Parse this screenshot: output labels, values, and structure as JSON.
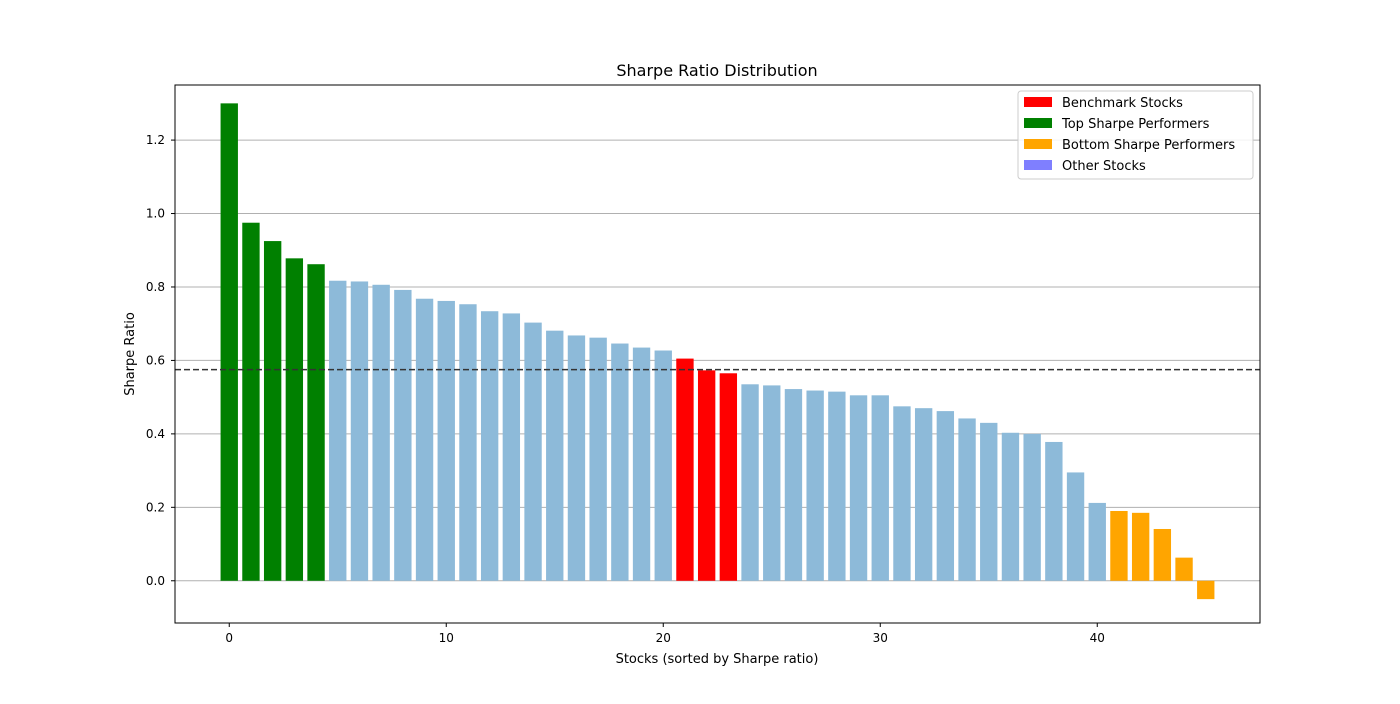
{
  "chart_data": {
    "type": "bar",
    "title": "Sharpe Ratio Distribution",
    "xlabel": "Stocks (sorted by Sharpe ratio)",
    "ylabel": "Sharpe Ratio",
    "xlim": [
      -2.5,
      47.5
    ],
    "ylim": [
      -0.115,
      1.35
    ],
    "x_ticks": [
      0,
      10,
      20,
      30,
      40
    ],
    "y_ticks": [
      0.0,
      0.2,
      0.4,
      0.6,
      0.8,
      1.0,
      1.2
    ],
    "grid": "horizontal",
    "legend_position": "top-right",
    "reference_line": {
      "y": 0.575,
      "style": "dashed"
    },
    "legend": [
      {
        "label": "Benchmark Stocks",
        "color": "#ff0000"
      },
      {
        "label": "Top Sharpe Performers",
        "color": "#008000"
      },
      {
        "label": "Bottom Sharpe Performers",
        "color": "#ffa500"
      },
      {
        "label": "Other Stocks",
        "color": "#7f7fff"
      }
    ],
    "colors": {
      "benchmark": "#ff0000",
      "top": "#008000",
      "bottom": "#ffa500",
      "other": "#8dbad9"
    },
    "values": [
      1.3,
      0.975,
      0.925,
      0.878,
      0.862,
      0.817,
      0.815,
      0.806,
      0.792,
      0.768,
      0.762,
      0.753,
      0.734,
      0.728,
      0.703,
      0.681,
      0.668,
      0.662,
      0.646,
      0.635,
      0.627,
      0.605,
      0.573,
      0.565,
      0.535,
      0.532,
      0.522,
      0.518,
      0.515,
      0.505,
      0.505,
      0.475,
      0.47,
      0.462,
      0.442,
      0.43,
      0.403,
      0.4,
      0.378,
      0.295,
      0.212,
      0.19,
      0.185,
      0.141,
      0.063,
      -0.05
    ],
    "groups": [
      "top",
      "top",
      "top",
      "top",
      "top",
      "other",
      "other",
      "other",
      "other",
      "other",
      "other",
      "other",
      "other",
      "other",
      "other",
      "other",
      "other",
      "other",
      "other",
      "other",
      "other",
      "benchmark",
      "benchmark",
      "benchmark",
      "other",
      "other",
      "other",
      "other",
      "other",
      "other",
      "other",
      "other",
      "other",
      "other",
      "other",
      "other",
      "other",
      "other",
      "other",
      "other",
      "other",
      "bottom",
      "bottom",
      "bottom",
      "bottom",
      "bottom"
    ]
  }
}
